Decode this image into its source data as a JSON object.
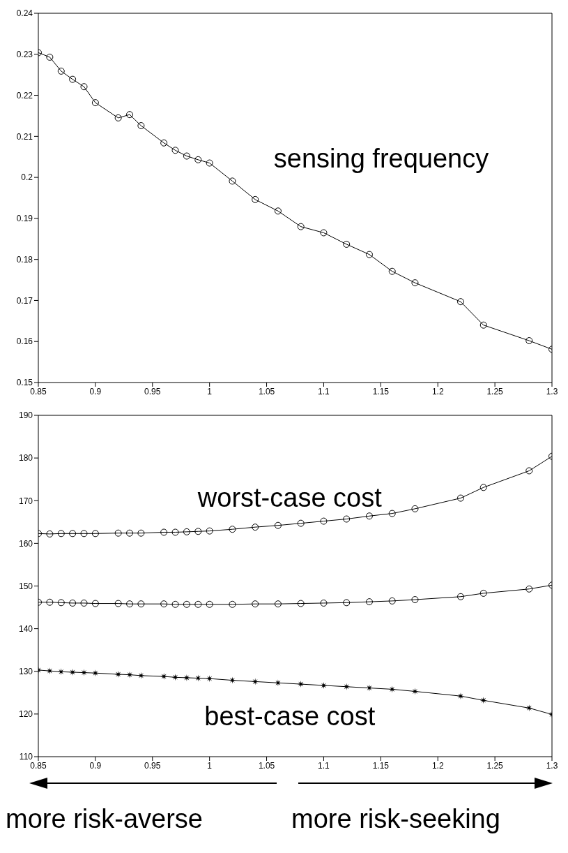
{
  "chart_data": [
    {
      "type": "line",
      "x": [
        0.85,
        0.86,
        0.87,
        0.88,
        0.89,
        0.9,
        0.92,
        0.93,
        0.94,
        0.96,
        0.97,
        0.98,
        0.99,
        1.0,
        1.02,
        1.04,
        1.06,
        1.08,
        1.1,
        1.12,
        1.14,
        1.16,
        1.18,
        1.22,
        1.24,
        1.28,
        1.3
      ],
      "series": [
        {
          "name": "sensing frequency",
          "color": "#000000",
          "marker": "circle",
          "values": [
            0.2304,
            0.2293,
            0.2259,
            0.2239,
            0.2221,
            0.2182,
            0.2145,
            0.2153,
            0.2126,
            0.2084,
            0.2066,
            0.2052,
            0.2043,
            0.2035,
            0.1991,
            0.1946,
            0.1918,
            0.188,
            0.1865,
            0.1837,
            0.1812,
            0.1771,
            0.1743,
            0.1697,
            0.164,
            0.1602,
            0.1581
          ]
        }
      ],
      "xlim": [
        0.85,
        1.3
      ],
      "xticks": [
        0.85,
        0.9,
        0.95,
        1,
        1.05,
        1.1,
        1.15,
        1.2,
        1.25,
        1.3
      ],
      "ylim": [
        0.15,
        0.24
      ],
      "yticks": [
        0.15,
        0.16,
        0.17,
        0.18,
        0.19,
        0.2,
        0.21,
        0.22,
        0.23,
        0.24
      ],
      "grid": false,
      "legend": false,
      "line_style": "solid"
    },
    {
      "type": "line",
      "x": [
        0.85,
        0.86,
        0.87,
        0.88,
        0.89,
        0.9,
        0.92,
        0.93,
        0.94,
        0.96,
        0.97,
        0.98,
        0.99,
        1.0,
        1.02,
        1.04,
        1.06,
        1.08,
        1.1,
        1.12,
        1.14,
        1.16,
        1.18,
        1.22,
        1.24,
        1.28,
        1.3
      ],
      "series": [
        {
          "name": "worst-case cost",
          "color": "#000000",
          "marker": "circle",
          "values": [
            162.3,
            162.2,
            162.3,
            162.3,
            162.3,
            162.3,
            162.4,
            162.4,
            162.4,
            162.6,
            162.6,
            162.7,
            162.8,
            162.9,
            163.3,
            163.8,
            164.2,
            164.7,
            165.2,
            165.7,
            166.4,
            167.0,
            168.1,
            170.6,
            173.1,
            177.0,
            180.4
          ]
        },
        {
          "color": "#000000",
          "marker": "circle",
          "values": [
            146.2,
            146.2,
            146.1,
            146.0,
            146.0,
            145.9,
            145.9,
            145.8,
            145.8,
            145.8,
            145.7,
            145.7,
            145.7,
            145.7,
            145.7,
            145.8,
            145.8,
            145.9,
            146.0,
            146.1,
            146.3,
            146.5,
            146.8,
            147.5,
            148.3,
            149.3,
            150.2
          ]
        },
        {
          "name": "best-case cost",
          "color": "#000000",
          "marker": "star",
          "values": [
            130.3,
            130.1,
            129.9,
            129.8,
            129.7,
            129.6,
            129.3,
            129.2,
            129.0,
            128.8,
            128.6,
            128.5,
            128.4,
            128.3,
            127.9,
            127.6,
            127.3,
            127.0,
            126.7,
            126.4,
            126.1,
            125.8,
            125.3,
            124.2,
            123.2,
            121.4,
            119.9
          ]
        }
      ],
      "xlim": [
        0.85,
        1.3
      ],
      "xticks": [
        0.85,
        0.9,
        0.95,
        1,
        1.05,
        1.1,
        1.15,
        1.2,
        1.25,
        1.3
      ],
      "ylim": [
        110,
        190
      ],
      "yticks": [
        110,
        120,
        130,
        140,
        150,
        160,
        170,
        180,
        190
      ],
      "grid": false,
      "legend": false,
      "line_style": "solid",
      "annotations": [
        "more risk-averse",
        "more risk-seeking"
      ]
    }
  ]
}
